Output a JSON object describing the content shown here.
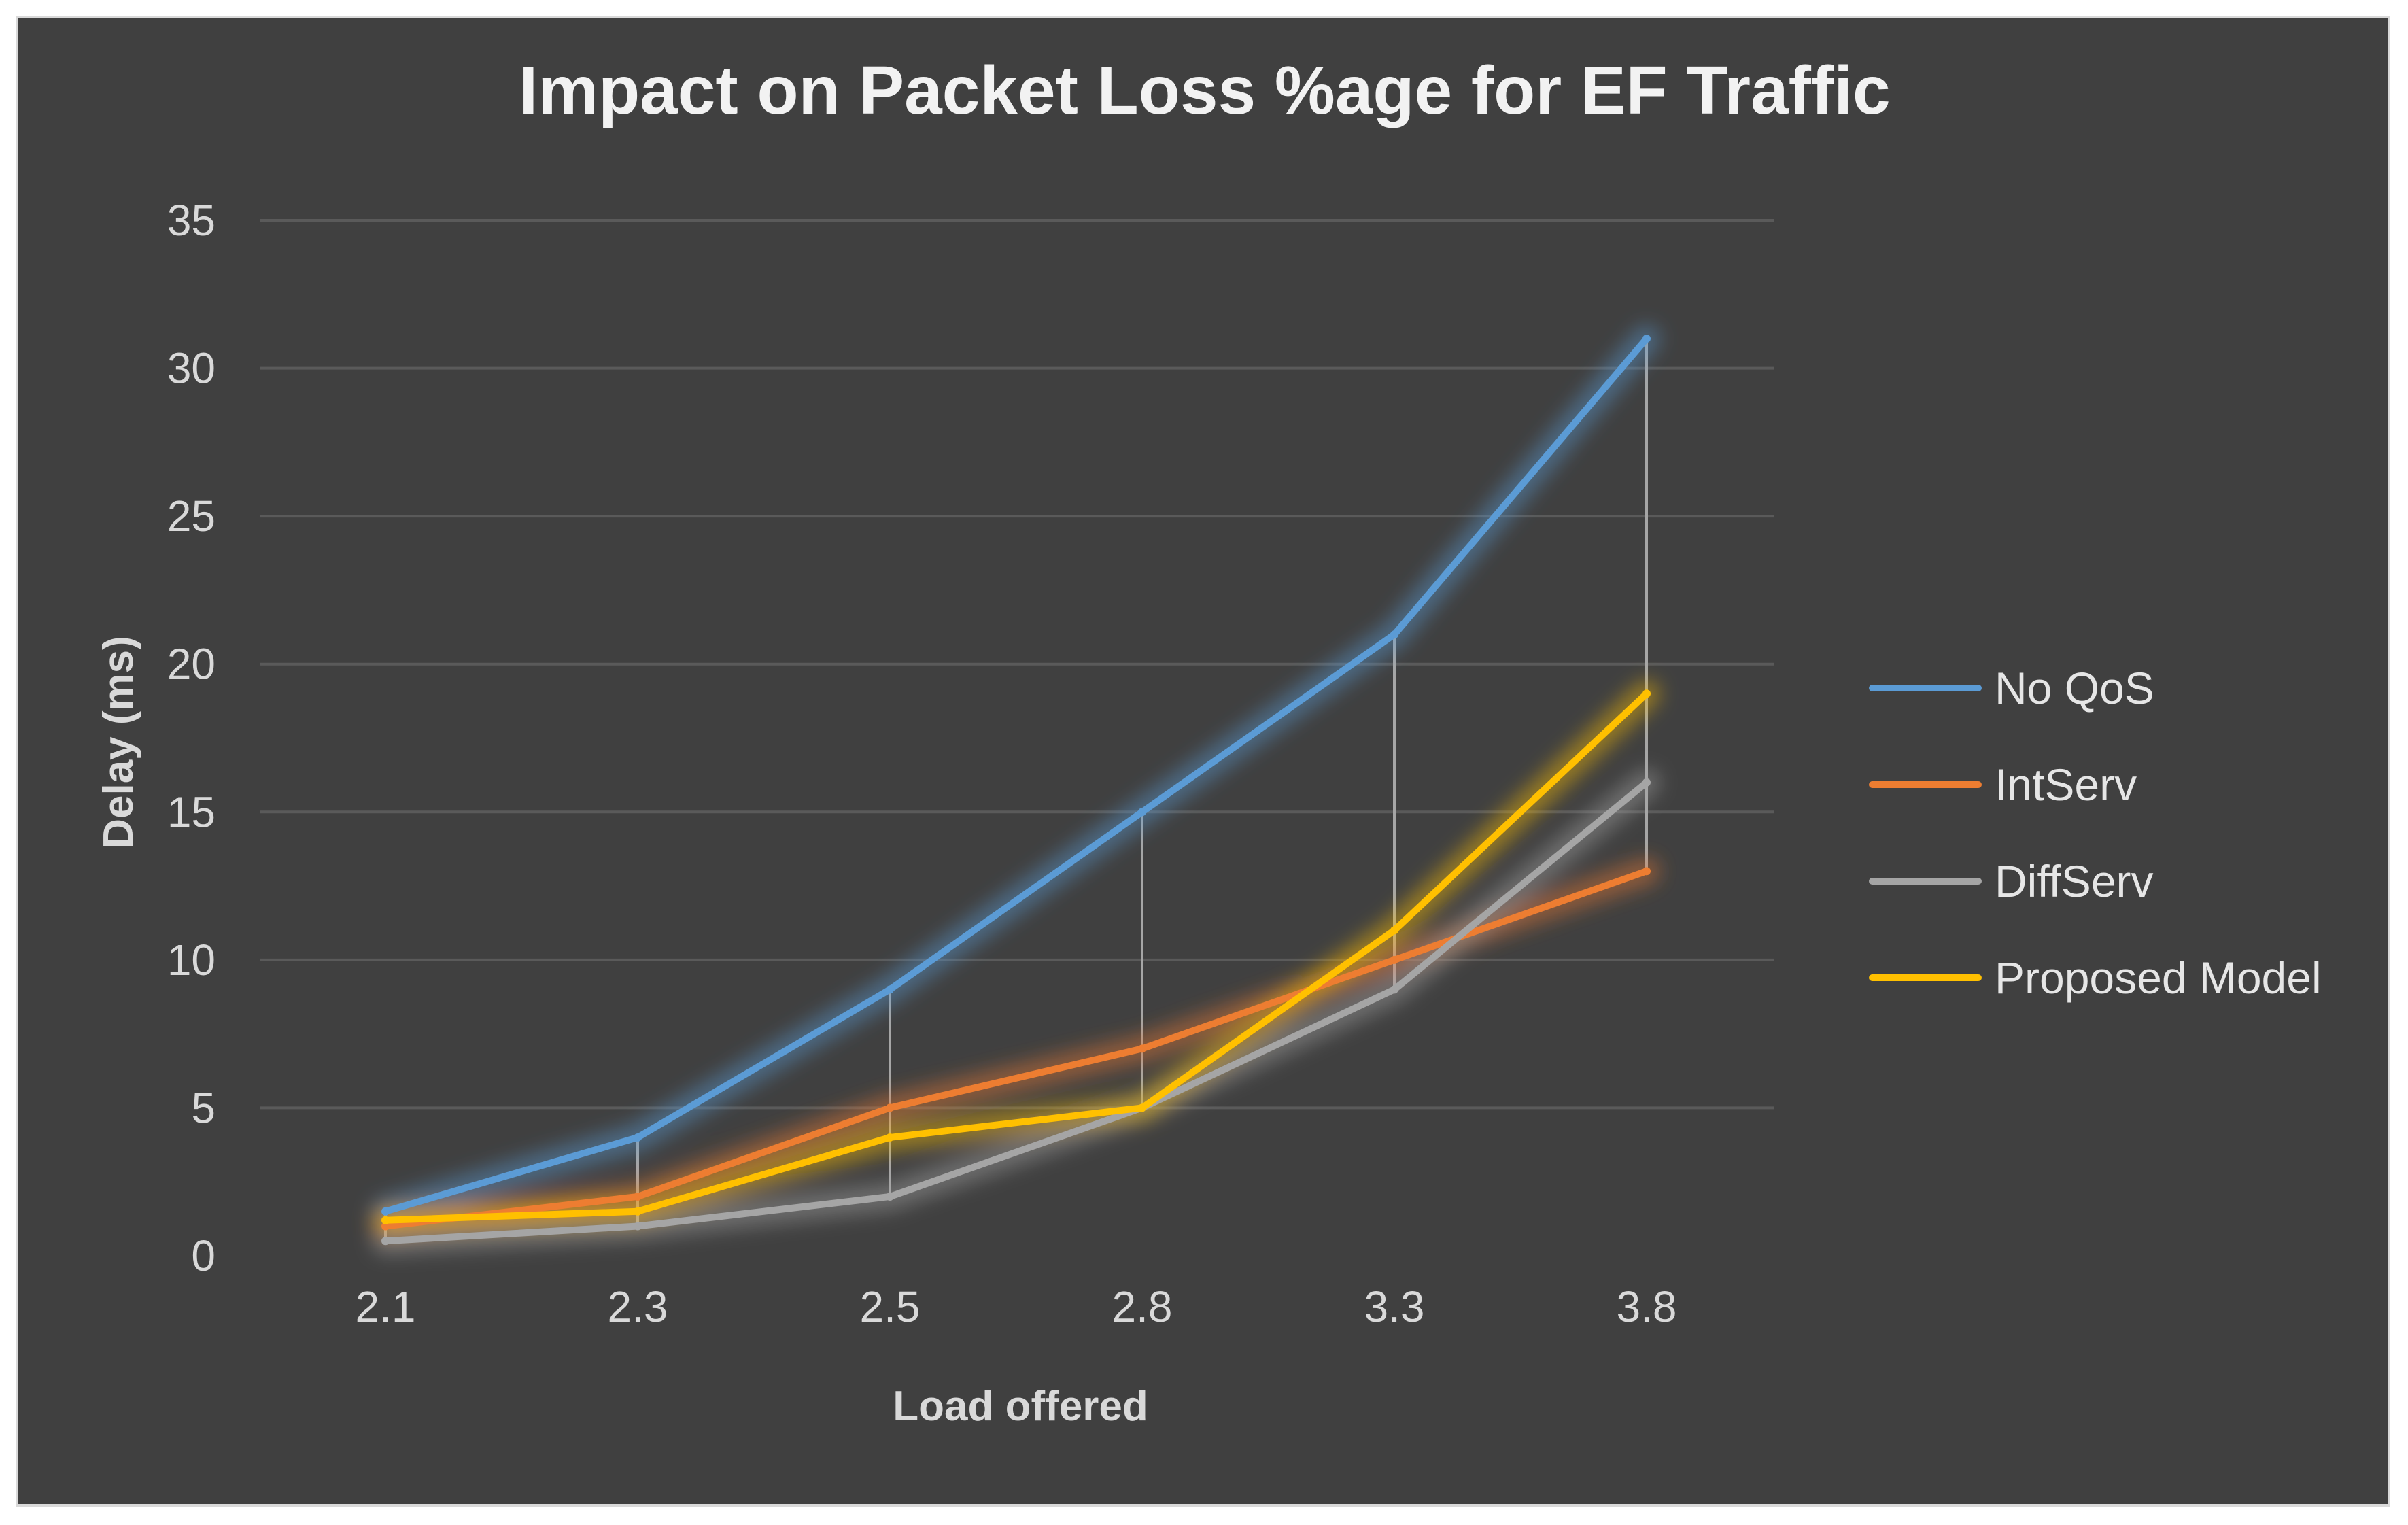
{
  "chart_data": {
    "type": "line",
    "title": "Impact on Packet Loss %age for EF Traffic",
    "xlabel": "Load offered",
    "ylabel": "Delay (ms)",
    "categories": [
      "2.1",
      "2.3",
      "2.5",
      "2.8",
      "3.3",
      "3.8"
    ],
    "ylim": [
      0,
      35
    ],
    "yticks": [
      0,
      5,
      10,
      15,
      20,
      25,
      30,
      35
    ],
    "grid": true,
    "legend_position": "right",
    "drop_lines": true,
    "series": [
      {
        "name": "No QoS",
        "color": "#5b9bd5",
        "values": [
          1.5,
          4,
          9,
          15,
          21,
          31
        ]
      },
      {
        "name": "IntServ",
        "color": "#ed7d31",
        "values": [
          1,
          2,
          5,
          7,
          10,
          13
        ]
      },
      {
        "name": "DiffServ",
        "color": "#a5a5a5",
        "values": [
          0.5,
          1,
          2,
          5,
          9,
          16
        ]
      },
      {
        "name": "Proposed Model",
        "color": "#ffc000",
        "values": [
          1.2,
          1.5,
          4,
          5,
          11,
          19
        ]
      }
    ]
  }
}
